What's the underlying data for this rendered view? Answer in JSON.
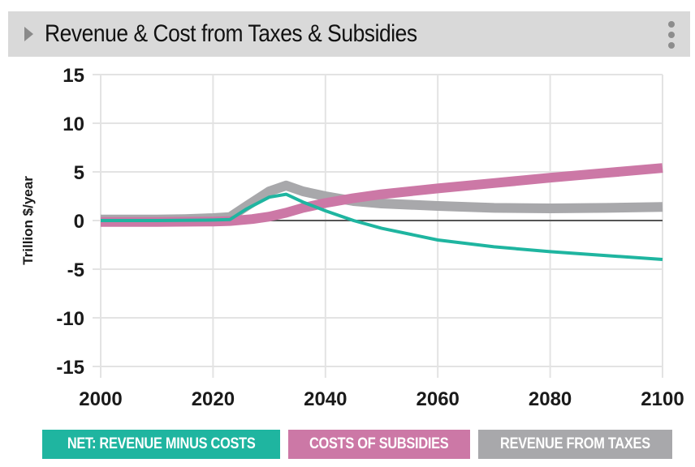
{
  "header": {
    "title": "Revenue & Cost from Taxes & Subsidies",
    "expand_icon": "caret-right-icon",
    "menu_icon": "kebab-menu-icon"
  },
  "colors": {
    "net": "#1fb5a0",
    "subsidies": "#cc78a6",
    "taxes": "#a8a8ab",
    "grid": "#e3e3e3",
    "zero_line": "#555555"
  },
  "legend": [
    {
      "key": "net",
      "label": "NET: REVENUE MINUS COSTS"
    },
    {
      "key": "subsidies",
      "label": "COSTS OF SUBSIDIES"
    },
    {
      "key": "taxes",
      "label": "REVENUE FROM TAXES"
    }
  ],
  "chart_data": {
    "type": "line",
    "title": "Revenue & Cost from Taxes & Subsidies",
    "xlabel": "",
    "ylabel": "Trillion $/year",
    "xlim": [
      2000,
      2100
    ],
    "ylim": [
      -15,
      15
    ],
    "xticks": [
      "2000",
      "2020",
      "2040",
      "2060",
      "2080",
      "2100"
    ],
    "yticks": [
      "15",
      "10",
      "5",
      "0",
      "-5",
      "-10",
      "-15"
    ],
    "grid": true,
    "legend_position": "bottom",
    "series": [
      {
        "name": "REVENUE FROM TAXES",
        "key": "taxes",
        "points": [
          [
            2000,
            0.1
          ],
          [
            2010,
            0.1
          ],
          [
            2015,
            0.15
          ],
          [
            2020,
            0.25
          ],
          [
            2023,
            0.35
          ],
          [
            2026,
            1.5
          ],
          [
            2030,
            3.0
          ],
          [
            2033,
            3.6
          ],
          [
            2036,
            3.0
          ],
          [
            2040,
            2.5
          ],
          [
            2045,
            2.0
          ],
          [
            2050,
            1.75
          ],
          [
            2060,
            1.5
          ],
          [
            2070,
            1.3
          ],
          [
            2080,
            1.25
          ],
          [
            2090,
            1.3
          ],
          [
            2100,
            1.4
          ]
        ]
      },
      {
        "name": "COSTS OF SUBSIDIES",
        "key": "subsidies",
        "points": [
          [
            2000,
            -0.15
          ],
          [
            2010,
            -0.15
          ],
          [
            2020,
            -0.1
          ],
          [
            2023,
            -0.05
          ],
          [
            2027,
            0.15
          ],
          [
            2030,
            0.4
          ],
          [
            2033,
            0.8
          ],
          [
            2036,
            1.3
          ],
          [
            2040,
            1.8
          ],
          [
            2045,
            2.3
          ],
          [
            2050,
            2.7
          ],
          [
            2060,
            3.3
          ],
          [
            2070,
            3.85
          ],
          [
            2080,
            4.4
          ],
          [
            2090,
            4.9
          ],
          [
            2100,
            5.4
          ]
        ]
      },
      {
        "name": "NET: REVENUE MINUS COSTS",
        "key": "net",
        "points": [
          [
            2000,
            0.0
          ],
          [
            2010,
            0.0
          ],
          [
            2020,
            0.05
          ],
          [
            2023,
            0.1
          ],
          [
            2026,
            1.2
          ],
          [
            2030,
            2.4
          ],
          [
            2033,
            2.7
          ],
          [
            2036,
            1.9
          ],
          [
            2040,
            1.0
          ],
          [
            2045,
            0.0
          ],
          [
            2050,
            -0.8
          ],
          [
            2060,
            -2.0
          ],
          [
            2070,
            -2.7
          ],
          [
            2080,
            -3.2
          ],
          [
            2090,
            -3.6
          ],
          [
            2100,
            -4.0
          ]
        ]
      }
    ]
  }
}
